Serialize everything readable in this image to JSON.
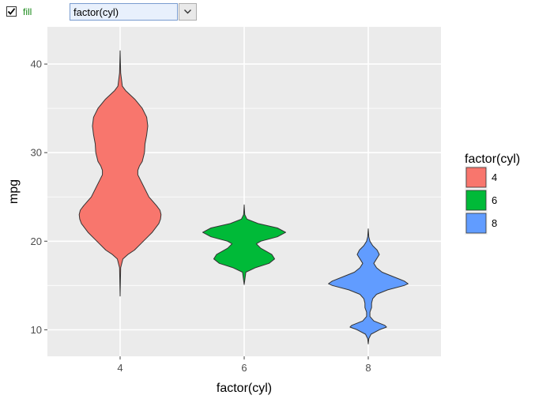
{
  "toolbar": {
    "fill_checkbox": {
      "checked": true,
      "label": "fill"
    },
    "aesthetic_select": {
      "value": "factor(cyl)"
    },
    "dropdown_icon": "chevron-down-icon"
  },
  "colors": {
    "group_4": "#F8766D",
    "group_6": "#00BA38",
    "group_8": "#619CFF",
    "panel": "#EBEBEB",
    "grid": "#FFFFFF"
  },
  "chart_data": {
    "type": "violin",
    "title": "",
    "xlabel": "factor(cyl)",
    "ylabel": "mpg",
    "categories": [
      "4",
      "6",
      "8"
    ],
    "ylim": [
      7,
      44.2
    ],
    "yticks": [
      10,
      20,
      30,
      40
    ],
    "grid": true,
    "legend": {
      "title": "factor(cyl)",
      "position": "right",
      "entries": [
        "4",
        "6",
        "8"
      ]
    },
    "series": [
      {
        "group": "4",
        "color": "#F8766D",
        "min": 13.8,
        "max": 41.5,
        "profile": [
          [
            41.5,
            0
          ],
          [
            39,
            0.01
          ],
          [
            37.5,
            0.04
          ],
          [
            37,
            0.1
          ],
          [
            36,
            0.27
          ],
          [
            35,
            0.4
          ],
          [
            34,
            0.48
          ],
          [
            33,
            0.5
          ],
          [
            32,
            0.48
          ],
          [
            31,
            0.45
          ],
          [
            30,
            0.44
          ],
          [
            29,
            0.4
          ],
          [
            28.5,
            0.35
          ],
          [
            28,
            0.32
          ],
          [
            27.5,
            0.32
          ],
          [
            27,
            0.36
          ],
          [
            26,
            0.44
          ],
          [
            25,
            0.52
          ],
          [
            24,
            0.66
          ],
          [
            23.5,
            0.72
          ],
          [
            23,
            0.74
          ],
          [
            22.5,
            0.73
          ],
          [
            22,
            0.7
          ],
          [
            21,
            0.58
          ],
          [
            20,
            0.42
          ],
          [
            19,
            0.26
          ],
          [
            18.5,
            0.14
          ],
          [
            18,
            0.05
          ],
          [
            17,
            0.01
          ],
          [
            13.8,
            0
          ]
        ]
      },
      {
        "group": "6",
        "color": "#00BA38",
        "min": 15.1,
        "max": 24.1,
        "profile": [
          [
            24.1,
            0
          ],
          [
            23,
            0.01
          ],
          [
            22.5,
            0.05
          ],
          [
            22,
            0.25
          ],
          [
            21.5,
            0.6
          ],
          [
            21,
            0.75
          ],
          [
            20.5,
            0.6
          ],
          [
            20,
            0.3
          ],
          [
            19.7,
            0.22
          ],
          [
            19.2,
            0.3
          ],
          [
            18.5,
            0.5
          ],
          [
            18,
            0.55
          ],
          [
            17.5,
            0.45
          ],
          [
            17,
            0.2
          ],
          [
            16.5,
            0.03
          ],
          [
            15.1,
            0
          ]
        ]
      },
      {
        "group": "8",
        "color": "#619CFF",
        "min": 8.4,
        "max": 21.4,
        "profile": [
          [
            21.4,
            0
          ],
          [
            20.5,
            0.01
          ],
          [
            20,
            0.03
          ],
          [
            19.5,
            0.08
          ],
          [
            19,
            0.16
          ],
          [
            18.5,
            0.2
          ],
          [
            18,
            0.15
          ],
          [
            17.5,
            0.1
          ],
          [
            17,
            0.15
          ],
          [
            16.5,
            0.25
          ],
          [
            16,
            0.45
          ],
          [
            15.5,
            0.65
          ],
          [
            15.2,
            0.72
          ],
          [
            15,
            0.65
          ],
          [
            14.5,
            0.35
          ],
          [
            14,
            0.15
          ],
          [
            13.5,
            0.08
          ],
          [
            13,
            0.06
          ],
          [
            12.5,
            0.06
          ],
          [
            12,
            0.03
          ],
          [
            11.5,
            0.03
          ],
          [
            11,
            0.1
          ],
          [
            10.5,
            0.3
          ],
          [
            10.3,
            0.33
          ],
          [
            10,
            0.2
          ],
          [
            9.5,
            0.05
          ],
          [
            9,
            0.01
          ],
          [
            8.4,
            0
          ]
        ]
      }
    ]
  }
}
